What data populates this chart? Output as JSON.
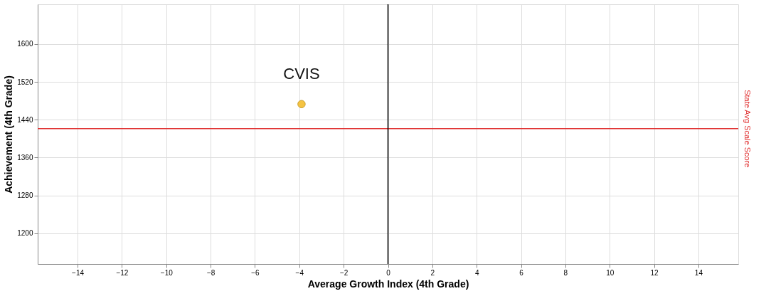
{
  "chart_data": {
    "type": "scatter",
    "xlabel": "Average Growth Index (4th Grade)",
    "ylabel": "Achievement (4th Grade)",
    "x": [
      -3.9
    ],
    "series": [
      {
        "color": "#f5c342",
        "values": [
          1473
        ]
      }
    ],
    "xlim": [
      -15.8,
      15.8
    ],
    "ylim": [
      1135,
      1684
    ],
    "xticks": [
      -14,
      -12,
      -10,
      -8,
      -6,
      -4,
      -2,
      0,
      2,
      4,
      6,
      8,
      10,
      12,
      14
    ],
    "yticks": [
      1200,
      1280,
      1360,
      1440,
      1520,
      1600
    ],
    "ref_lines": [
      {
        "axis": "y",
        "value": 1421,
        "label": "State Avg Scale Score",
        "color": "#e03030"
      },
      {
        "axis": "x",
        "value": 0,
        "color": "#000000"
      }
    ],
    "annotations": [
      {
        "text": "CVIS",
        "x": -3.9,
        "y": 1473
      }
    ],
    "marker": "circle",
    "grid": true
  }
}
